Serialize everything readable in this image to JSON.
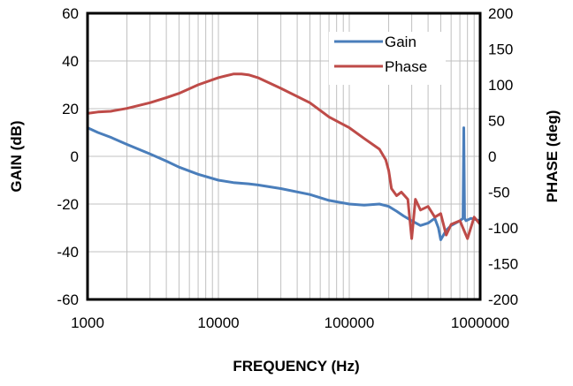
{
  "chart_data": {
    "type": "line",
    "xlabel": "FREQUENCY (Hz)",
    "ylabel": "GAIN (dB)",
    "y2label": "PHASE (deg)",
    "x_scale": "log",
    "xlim": [
      1000,
      1000000
    ],
    "ylim": [
      -60,
      60
    ],
    "y2lim": [
      -200,
      200
    ],
    "x_ticks": [
      "1000",
      "10000",
      "100000",
      "1000000"
    ],
    "y_ticks": [
      "60",
      "40",
      "20",
      "0",
      "-20",
      "-40",
      "-60"
    ],
    "y2_ticks": [
      "200",
      "150",
      "100",
      "50",
      "0",
      "-50",
      "-100",
      "-150",
      "-200"
    ],
    "grid": true,
    "legend_position": "top-right",
    "series": [
      {
        "name": "Gain",
        "color": "#4a7ebb",
        "axis": "left",
        "x": [
          1000,
          1200,
          1500,
          2000,
          3000,
          4000,
          5000,
          7000,
          10000,
          13000,
          17000,
          20000,
          30000,
          50000,
          70000,
          100000,
          130000,
          170000,
          200000,
          230000,
          260000,
          300000,
          350000,
          400000,
          450000,
          480000,
          500000,
          550000,
          600000,
          650000,
          700000,
          740000,
          750000,
          760000,
          780000,
          850000,
          1000000
        ],
        "values": [
          12,
          10,
          8,
          5,
          1,
          -2,
          -4.5,
          -7.5,
          -10,
          -11,
          -11.5,
          -12,
          -13.5,
          -16,
          -18.5,
          -20,
          -20.5,
          -20,
          -21,
          -23,
          -25,
          -27,
          -29,
          -28,
          -26,
          -30,
          -35,
          -31,
          -29,
          -28,
          -27,
          -26,
          12,
          -26,
          -27,
          -26,
          -27
        ]
      },
      {
        "name": "Phase",
        "color": "#be4b48",
        "axis": "right",
        "x": [
          1000,
          1200,
          1500,
          2000,
          3000,
          4000,
          5000,
          7000,
          10000,
          13000,
          15000,
          17000,
          20000,
          30000,
          50000,
          70000,
          100000,
          130000,
          170000,
          190000,
          200000,
          210000,
          230000,
          250000,
          280000,
          300000,
          320000,
          350000,
          400000,
          450000,
          500000,
          550000,
          600000,
          700000,
          800000,
          900000,
          1000000
        ],
        "values": [
          60,
          62,
          63,
          67,
          75,
          82,
          88,
          100,
          110,
          115,
          115,
          114,
          110,
          95,
          75,
          55,
          40,
          25,
          10,
          -5,
          -20,
          -45,
          -55,
          -50,
          -60,
          -115,
          -60,
          -75,
          -70,
          -85,
          -80,
          -110,
          -95,
          -90,
          -115,
          -85,
          -95
        ]
      }
    ]
  }
}
